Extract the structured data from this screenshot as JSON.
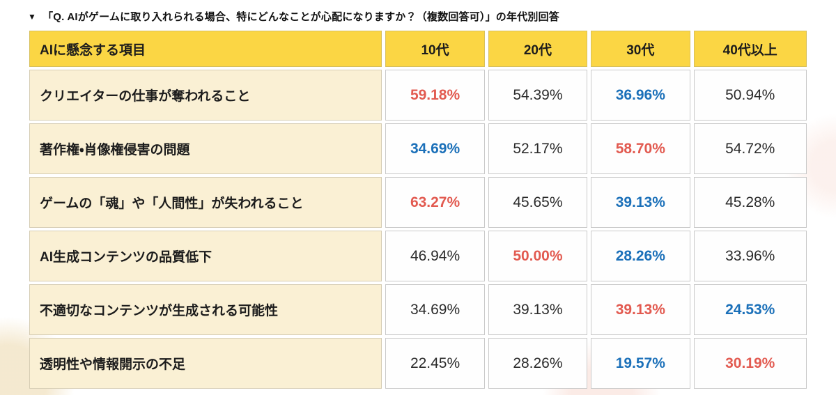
{
  "page": {
    "title_marker": "▼",
    "title": "「Q. AIがゲームに取り入れられる場合、特にどんなことが心配になりますか？（複数回答可）」の年代別回答"
  },
  "colors": {
    "header_bg": "#fbd644",
    "label_bg": "#faf0d4",
    "highest_value": "#e25a50",
    "lowest_value": "#1b70b9",
    "plain_value": "#2b2b2b"
  },
  "chart_data": {
    "type": "table",
    "title": "「Q. AIがゲームに取り入れられる場合、特にどんなことが心配になりますか？（複数回答可）」の年代別回答",
    "columns": [
      "AIに懸念する項目",
      "10代",
      "20代",
      "30代",
      "40代以上"
    ],
    "emphasis_legend": {
      "highest": "row maximum shown red bold",
      "lowest": "row minimum shown blue bold"
    },
    "rows": [
      {
        "label": "クリエイターの仕事が奪われること",
        "values": [
          "59.18%",
          "54.39%",
          "36.96%",
          "50.94%"
        ],
        "numeric": [
          59.18,
          54.39,
          36.96,
          50.94
        ],
        "emphasis": [
          "highest",
          "plain",
          "lowest",
          "plain"
        ]
      },
      {
        "label": "著作権・肖像権侵害の問題",
        "values": [
          "34.69%",
          "52.17%",
          "58.70%",
          "54.72%"
        ],
        "numeric": [
          34.69,
          52.17,
          58.7,
          54.72
        ],
        "emphasis": [
          "lowest",
          "plain",
          "highest",
          "plain"
        ]
      },
      {
        "label": "ゲームの「魂」や「人間性」が失われること",
        "values": [
          "63.27%",
          "45.65%",
          "39.13%",
          "45.28%"
        ],
        "numeric": [
          63.27,
          45.65,
          39.13,
          45.28
        ],
        "emphasis": [
          "highest",
          "plain",
          "lowest",
          "plain"
        ]
      },
      {
        "label": "AI生成コンテンツの品質低下",
        "values": [
          "46.94%",
          "50.00%",
          "28.26%",
          "33.96%"
        ],
        "numeric": [
          46.94,
          50.0,
          28.26,
          33.96
        ],
        "emphasis": [
          "plain",
          "highest",
          "lowest",
          "plain"
        ]
      },
      {
        "label": "不適切なコンテンツが生成される可能性",
        "values": [
          "34.69%",
          "39.13%",
          "39.13%",
          "24.53%"
        ],
        "numeric": [
          34.69,
          39.13,
          39.13,
          24.53
        ],
        "emphasis": [
          "plain",
          "plain",
          "highest",
          "lowest"
        ]
      },
      {
        "label": "透明性や情報開示の不足",
        "values": [
          "22.45%",
          "28.26%",
          "19.57%",
          "30.19%"
        ],
        "numeric": [
          22.45,
          28.26,
          19.57,
          30.19
        ],
        "emphasis": [
          "plain",
          "plain",
          "lowest",
          "highest"
        ]
      }
    ]
  }
}
